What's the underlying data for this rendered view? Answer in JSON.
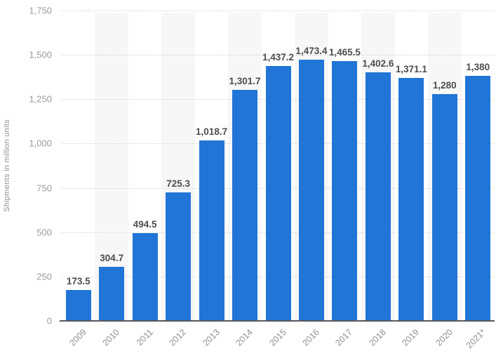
{
  "chart_data": {
    "type": "bar",
    "title": "",
    "xlabel": "",
    "ylabel": "Shipments in million units",
    "categories": [
      "2009",
      "2010",
      "2011",
      "2012",
      "2013",
      "2014",
      "2015",
      "2016",
      "2017",
      "2018",
      "2019",
      "2020",
      "2021*"
    ],
    "values": [
      173.5,
      304.7,
      494.5,
      725.3,
      1018.7,
      1301.7,
      1437.2,
      1473.4,
      1465.5,
      1402.6,
      1371.1,
      1280,
      1380
    ],
    "value_labels": [
      "173.5",
      "304.7",
      "494.5",
      "725.3",
      "1,018.7",
      "1,301.7",
      "1,437.2",
      "1,473.4",
      "1,465.5",
      "1,402.6",
      "1,371.1",
      "1,280",
      "1,380"
    ],
    "ylim": [
      0,
      1750
    ],
    "yticks": [
      0,
      250,
      500,
      750,
      1000,
      1250,
      1500,
      1750
    ],
    "ytick_labels": [
      "0",
      "250",
      "500",
      "750",
      "1,000",
      "1,250",
      "1,500",
      "1,750"
    ],
    "grid": "horizontal-dotted",
    "legend_position": "none",
    "stripe_slots": "alternating, behind even years starting 2010",
    "colors": {
      "bar": "#2175d6",
      "stripe": "#f7f7f7",
      "gridline": "#d4d4d4",
      "axis_line": "#58585a",
      "tick_text": "#9a9a9a",
      "category_text": "#8f8f8f",
      "value_text": "#4d4d4d",
      "background": "#ffffff"
    }
  }
}
